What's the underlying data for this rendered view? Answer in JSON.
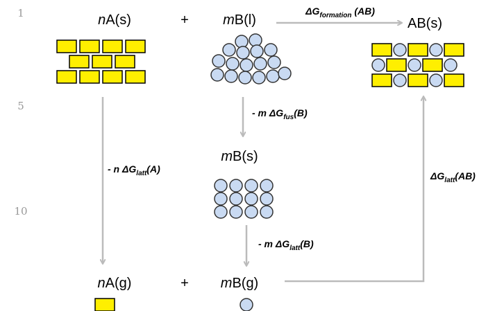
{
  "line_numbers": [
    "1",
    "5",
    "10"
  ],
  "species": [
    {
      "coef": "n",
      "formula": "A(s)"
    },
    {
      "coef": "m",
      "formula": "B(l)"
    },
    {
      "formula": "AB(s)"
    },
    {
      "coef": "m",
      "formula": "B(s)"
    },
    {
      "coef": "n",
      "formula": "A(g)"
    },
    {
      "coef": "m",
      "formula": "B(g)"
    }
  ],
  "plus_signs": [
    "+",
    "+"
  ],
  "arrow_labels": [
    {
      "symbol": "ΔG",
      "subscript": "formation",
      "suffix": " (AB)"
    },
    {
      "prefix": "- m ",
      "symbol": "ΔG",
      "subscript": "fus",
      "suffix": "(B)"
    },
    {
      "prefix": "- n ",
      "symbol": "ΔG",
      "subscript": "latt",
      "suffix": "(A)"
    },
    {
      "prefix": "- m ",
      "symbol": "ΔG",
      "subscript": "latt",
      "suffix": "(B)"
    },
    {
      "symbol": "ΔG",
      "subscript": "latt",
      "suffix": "(AB)"
    }
  ]
}
